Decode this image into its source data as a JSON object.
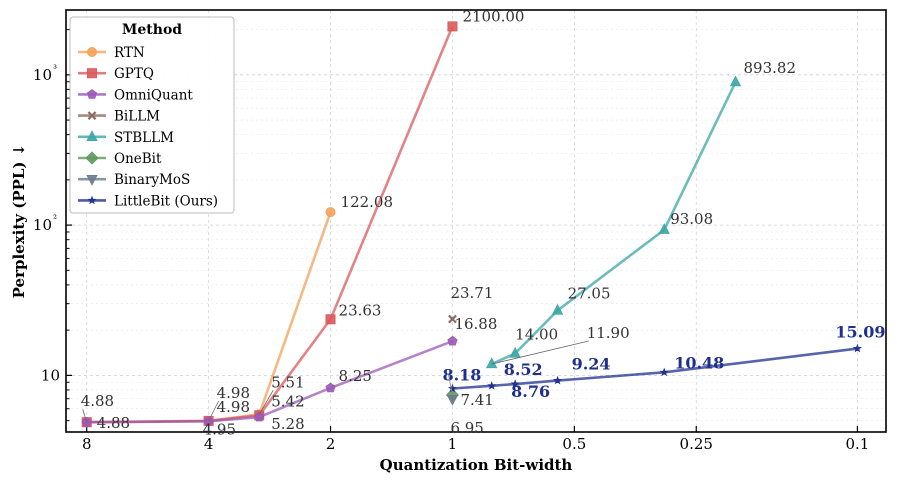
{
  "chart_data": {
    "type": "line",
    "title": "",
    "xlabel": "Quantization Bit-width",
    "ylabel": "Perplexity (PPL) ↓",
    "xscale": "log, reversed",
    "yscale": "log",
    "xlim": [
      9.0,
      0.085
    ],
    "ylim": [
      4.2,
      2700
    ],
    "x_ticks": [
      8,
      4,
      2,
      1,
      0.5,
      0.25,
      0.1
    ],
    "x_tick_labels": [
      "8",
      "4",
      "2",
      "1",
      "0.5",
      "0.25",
      "0.1"
    ],
    "y_ticks": [
      10,
      100,
      1000
    ],
    "y_tick_labels": [
      "10",
      "10²",
      "10³"
    ],
    "grid": true,
    "legend": {
      "title": "Method",
      "placement": "top-left",
      "entries": [
        "RTN",
        "GPTQ",
        "OmniQuant",
        "BiLLM",
        "STBLLM",
        "OneBit",
        "BinaryMoS",
        "LittleBit (Ours)"
      ]
    },
    "series": [
      {
        "name": "RTN",
        "color": "#f4a259",
        "marker": "circle",
        "x": [
          8,
          4,
          3,
          2
        ],
        "y": [
          4.88,
          4.98,
          5.51,
          122.08
        ]
      },
      {
        "name": "GPTQ",
        "color": "#d9595c",
        "marker": "square",
        "x": [
          8,
          4,
          3,
          2,
          1
        ],
        "y": [
          4.88,
          4.98,
          5.42,
          23.63,
          2100.0
        ]
      },
      {
        "name": "OmniQuant",
        "color": "#9b59b6",
        "marker": "pentagon",
        "x": [
          8,
          4,
          3,
          2,
          1
        ],
        "y": [
          4.88,
          4.95,
          5.28,
          8.25,
          16.88
        ]
      },
      {
        "name": "BiLLM",
        "color": "#8c6d62",
        "marker": "x",
        "x": [
          1
        ],
        "y": [
          23.71
        ]
      },
      {
        "name": "STBLLM",
        "color": "#3ba6a6",
        "marker": "triangle-up",
        "x": [
          0.8,
          0.7,
          0.55,
          0.3,
          0.2
        ],
        "y": [
          11.9,
          14.0,
          27.05,
          93.08,
          893.82
        ]
      },
      {
        "name": "OneBit",
        "color": "#5e9a5e",
        "marker": "diamond",
        "x": [
          1
        ],
        "y": [
          7.41
        ]
      },
      {
        "name": "BinaryMoS",
        "color": "#6b7b8c",
        "marker": "triangle-down",
        "x": [
          1
        ],
        "y": [
          6.95
        ]
      },
      {
        "name": "LittleBit (Ours)",
        "color": "#1f2f8f",
        "marker": "star",
        "x": [
          1,
          0.8,
          0.7,
          0.55,
          0.3,
          0.1
        ],
        "y": [
          8.18,
          8.52,
          8.76,
          9.24,
          10.48,
          15.09
        ]
      }
    ],
    "annotations": {
      "plain": [
        {
          "text": "4.88",
          "x": 8,
          "y": 4.88
        },
        {
          "text": "4.88",
          "x": 8,
          "y": 4.88
        },
        {
          "text": "4.98",
          "x": 4,
          "y": 4.98
        },
        {
          "text": "4.98",
          "x": 4,
          "y": 4.98
        },
        {
          "text": "4.95",
          "x": 4,
          "y": 4.95
        },
        {
          "text": "5.51",
          "x": 3,
          "y": 5.51
        },
        {
          "text": "5.42",
          "x": 3,
          "y": 5.42
        },
        {
          "text": "5.28",
          "x": 3,
          "y": 5.28
        },
        {
          "text": "122.08",
          "x": 2,
          "y": 122.08
        },
        {
          "text": "23.63",
          "x": 2,
          "y": 23.63
        },
        {
          "text": "8.25",
          "x": 2,
          "y": 8.25
        },
        {
          "text": "2100.00",
          "x": 1,
          "y": 2100.0
        },
        {
          "text": "23.71",
          "x": 1,
          "y": 23.71
        },
        {
          "text": "16.88",
          "x": 1,
          "y": 16.88
        },
        {
          "text": "7.41",
          "x": 1,
          "y": 7.41
        },
        {
          "text": "6.95",
          "x": 1,
          "y": 6.95
        },
        {
          "text": "11.90",
          "x": 0.8,
          "y": 11.9
        },
        {
          "text": "14.00",
          "x": 0.7,
          "y": 14.0
        },
        {
          "text": "27.05",
          "x": 0.55,
          "y": 27.05
        },
        {
          "text": "93.08",
          "x": 0.3,
          "y": 93.08
        },
        {
          "text": "893.82",
          "x": 0.2,
          "y": 893.82
        }
      ],
      "bold": [
        {
          "text": "8.18",
          "x": 1,
          "y": 8.18
        },
        {
          "text": "8.52",
          "x": 0.8,
          "y": 8.52
        },
        {
          "text": "8.76",
          "x": 0.7,
          "y": 8.76
        },
        {
          "text": "9.24",
          "x": 0.55,
          "y": 9.24
        },
        {
          "text": "10.48",
          "x": 0.3,
          "y": 10.48
        },
        {
          "text": "15.09",
          "x": 0.1,
          "y": 15.09
        }
      ]
    }
  }
}
